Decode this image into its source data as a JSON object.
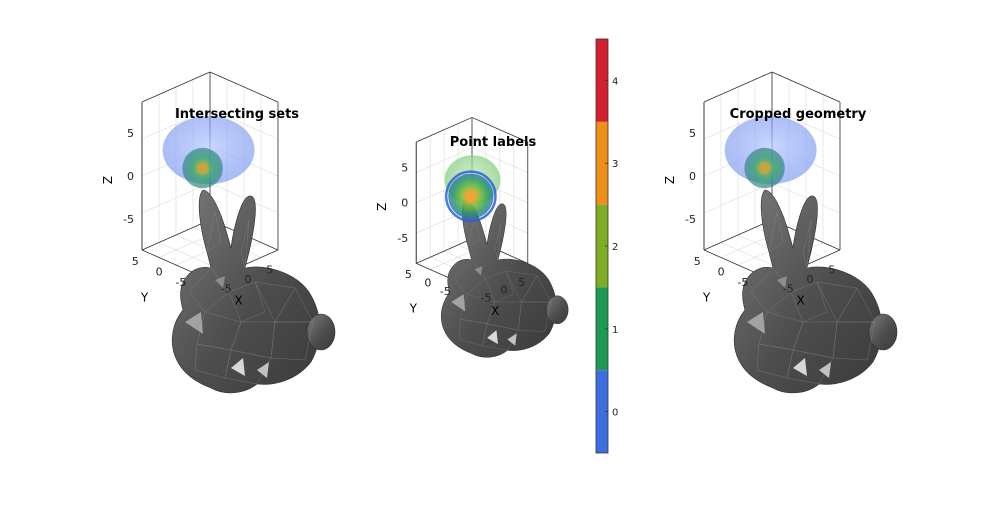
{
  "chart_data": [
    {
      "type": "3d-surface",
      "title": "Intersecting sets",
      "xlabel": "X",
      "ylabel": "Y",
      "zlabel": "Z",
      "xticks": [
        "-5",
        "0",
        "5"
      ],
      "yticks": [
        "5",
        "0",
        "-5"
      ],
      "zticks": [
        "5",
        "0",
        "-5"
      ],
      "colors": {
        "mesh": "#5a5a5a",
        "sphere_outer": "#7d9bf0",
        "sphere_inner": "#2a9b6a",
        "core": "#c9a23a"
      }
    },
    {
      "type": "3d-surface",
      "title": "Point labels",
      "xlabel": "X",
      "ylabel": "Y",
      "zlabel": "Z",
      "xticks": [
        "-5",
        "0",
        "5"
      ],
      "yticks": [
        "5",
        "0",
        "-5"
      ],
      "zticks": [
        "5",
        "0",
        "-5"
      ],
      "colors": {
        "mesh": "#5a5a5a",
        "sphere_outer": "#8fd08a",
        "sphere_inner": "#2f63e0",
        "core": "#e08a2a"
      }
    },
    {
      "type": "3d-surface",
      "title": "Cropped geometry",
      "xlabel": "X",
      "ylabel": "Y",
      "zlabel": "Z",
      "xticks": [
        "-5",
        "0",
        "5"
      ],
      "yticks": [
        "5",
        "0",
        "-5"
      ],
      "zticks": [
        "5",
        "0",
        "-5"
      ],
      "colors": {
        "mesh": "#5a5a5a",
        "sphere_outer": "#7d9bf0",
        "sphere_inner": "#2a9b6a",
        "core": "#c9a23a"
      }
    }
  ],
  "colorbar": {
    "ticks": [
      "0",
      "1",
      "2",
      "3",
      "4"
    ],
    "values": [
      0,
      1,
      2,
      3,
      4
    ],
    "range": [
      -0.5,
      4.5
    ],
    "colors": [
      "#3e6de0",
      "#1a9a55",
      "#7fae25",
      "#f08f18",
      "#d4202e"
    ]
  }
}
